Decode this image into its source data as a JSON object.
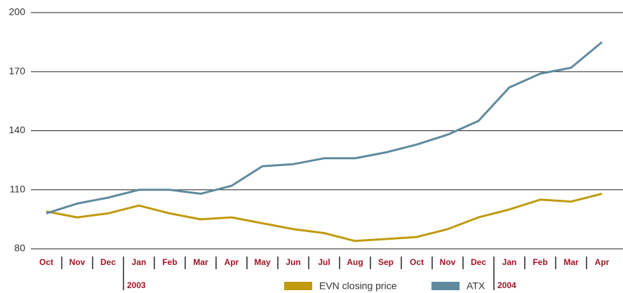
{
  "chart_data": {
    "type": "line",
    "categories": [
      "Oct",
      "Nov",
      "Dec",
      "Jan",
      "Feb",
      "Mar",
      "Apr",
      "May",
      "Jun",
      "Jul",
      "Aug",
      "Sep",
      "Oct",
      "Nov",
      "Dec",
      "Jan",
      "Feb",
      "Mar",
      "Apr"
    ],
    "year_labels": [
      "2003",
      "2004"
    ],
    "series": [
      {
        "name": "EVN closing price",
        "color": "#c19a0e",
        "values": [
          99,
          96,
          98,
          102,
          98,
          95,
          96,
          93,
          90,
          88,
          84,
          85,
          86,
          90,
          96,
          100,
          105,
          104,
          108
        ]
      },
      {
        "name": "ATX",
        "color": "#5f8a9e",
        "values": [
          98,
          103,
          106,
          110,
          110,
          108,
          112,
          122,
          123,
          126,
          126,
          129,
          133,
          138,
          145,
          162,
          169,
          172,
          185
        ]
      }
    ],
    "ylim": [
      80,
      200
    ],
    "yticks": [
      80,
      110,
      140,
      170,
      200
    ],
    "grid": true,
    "legend": "bottom"
  }
}
